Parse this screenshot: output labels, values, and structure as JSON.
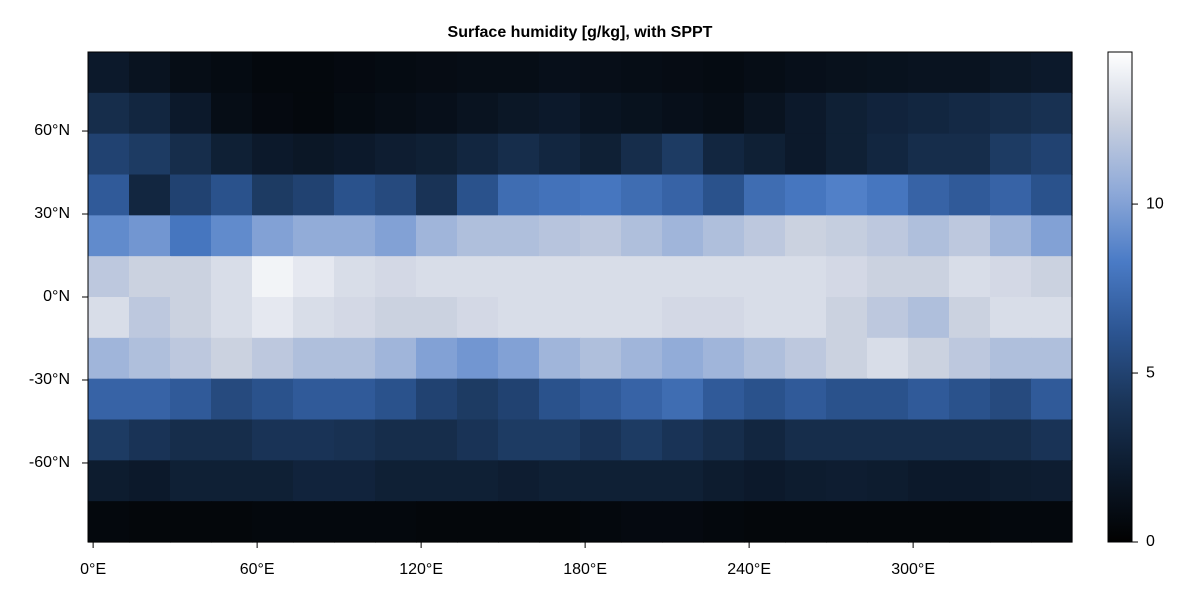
{
  "chart_data": {
    "type": "heatmap",
    "title": "Surface humidity [g/kg], with SPPT",
    "x": [
      5.625,
      20.625,
      35.625,
      50.625,
      65.625,
      80.625,
      95.625,
      110.625,
      125.625,
      140.625,
      155.625,
      170.625,
      185.625,
      200.625,
      215.625,
      230.625,
      245.625,
      260.625,
      275.625,
      290.625,
      305.625,
      320.625,
      335.625,
      350.625
    ],
    "y": [
      81.19,
      66.43,
      51.67,
      36.9,
      22.14,
      7.38,
      -7.38,
      -22.14,
      -36.9,
      -51.67,
      -66.43,
      -81.19
    ],
    "z": [
      [
        2,
        1.5,
        1,
        0.8,
        0.6,
        0.6,
        0.7,
        0.8,
        0.9,
        1,
        1,
        1.2,
        1.1,
        1,
        0.9,
        0.8,
        1,
        1.2,
        1.3,
        1.4,
        1.5,
        1.5,
        1.8,
        2
      ],
      [
        3.5,
        3,
        2,
        1,
        0.7,
        0.6,
        0.8,
        1,
        1.2,
        1.5,
        1.8,
        2,
        1.6,
        1.4,
        1.2,
        1,
        1.5,
        2,
        2.5,
        2.8,
        3,
        3.2,
        3.5,
        3.8
      ],
      [
        5,
        4.5,
        3.5,
        2.5,
        2,
        1.8,
        2,
        2.3,
        2.5,
        3,
        3.5,
        3,
        2.5,
        3.5,
        4.5,
        3,
        2.5,
        2,
        2.5,
        3,
        3.5,
        3.5,
        4.5,
        5
      ],
      [
        6.5,
        3,
        5,
        6,
        4.5,
        5,
        6,
        5.5,
        4,
        6,
        7.5,
        7.8,
        8,
        7.5,
        7,
        6,
        7.5,
        8,
        8.5,
        8,
        7,
        6.5,
        7,
        6
      ],
      [
        9,
        9.5,
        8,
        9,
        10,
        10.5,
        10.5,
        10,
        11,
        11.5,
        11.5,
        11.8,
        12,
        11.5,
        11,
        11.5,
        12,
        12.5,
        12.3,
        12,
        11.5,
        12,
        11,
        10
      ],
      [
        12,
        12.5,
        12.5,
        13,
        14,
        13.5,
        13,
        12.8,
        13,
        13,
        13,
        13,
        13,
        13,
        13,
        13,
        13,
        13,
        12.8,
        12.5,
        12.5,
        13,
        12.8,
        12.5
      ],
      [
        13,
        12,
        12.5,
        13,
        13.5,
        13,
        12.8,
        12.5,
        12.5,
        12.8,
        13,
        13,
        13,
        13,
        12.8,
        12.8,
        13,
        13,
        12.5,
        12,
        11.5,
        12.5,
        13,
        13
      ],
      [
        11,
        11.5,
        12,
        12.5,
        12,
        11.5,
        11.5,
        11,
        10,
        9.5,
        10,
        11,
        11.5,
        11,
        10.5,
        11,
        11.5,
        12,
        12.5,
        13,
        12.5,
        12,
        11.5,
        11.5
      ],
      [
        7,
        7,
        6.5,
        5.5,
        6,
        6.5,
        6.5,
        6,
        5,
        4.5,
        5,
        6,
        6.5,
        7,
        7.5,
        6.5,
        6,
        6.5,
        6,
        6,
        6.5,
        6,
        5.5,
        6.5
      ],
      [
        4.5,
        4,
        3.5,
        3.5,
        4,
        4,
        3.8,
        3.5,
        3.5,
        4,
        4.5,
        4.5,
        4,
        4.5,
        4,
        3.5,
        3,
        3.5,
        3.5,
        3.5,
        3.5,
        3.5,
        3.5,
        4
      ],
      [
        2.2,
        2,
        2.5,
        2.5,
        2.5,
        2.8,
        2.8,
        2.5,
        2.5,
        2.5,
        2.3,
        2.5,
        2.5,
        2.5,
        2.5,
        2.2,
        2,
        2.2,
        2.3,
        2.2,
        2,
        2,
        2.2,
        2.3
      ],
      [
        0.6,
        0.5,
        0.5,
        0.5,
        0.6,
        0.6,
        0.6,
        0.6,
        0.5,
        0.5,
        0.5,
        0.5,
        0.6,
        0.7,
        0.7,
        0.6,
        0.5,
        0.5,
        0.5,
        0.5,
        0.5,
        0.5,
        0.6,
        0.6
      ]
    ],
    "xlim": [
      -1.875,
      358.125
    ],
    "ylim": [
      -88.57,
      88.57
    ],
    "xticks": [
      {
        "value": 0,
        "label": "0°E"
      },
      {
        "value": 60,
        "label": "60°E"
      },
      {
        "value": 120,
        "label": "120°E"
      },
      {
        "value": 180,
        "label": "180°E"
      },
      {
        "value": 240,
        "label": "240°E"
      },
      {
        "value": 300,
        "label": "300°E"
      }
    ],
    "yticks": [
      {
        "value": -60,
        "label": "-60°N"
      },
      {
        "value": -30,
        "label": "-30°N"
      },
      {
        "value": 0,
        "label": "0°N"
      },
      {
        "value": 30,
        "label": "30°N"
      },
      {
        "value": 60,
        "label": "60°N"
      }
    ],
    "clim": [
      0,
      14.5
    ],
    "cticks": [
      0,
      5,
      10
    ],
    "colormap": [
      "#010101",
      "#0c1a2c",
      "#1a3559",
      "#2c5592",
      "#4a7bc6",
      "#8ea9d8",
      "#c9d0df",
      "#ffffff"
    ]
  }
}
